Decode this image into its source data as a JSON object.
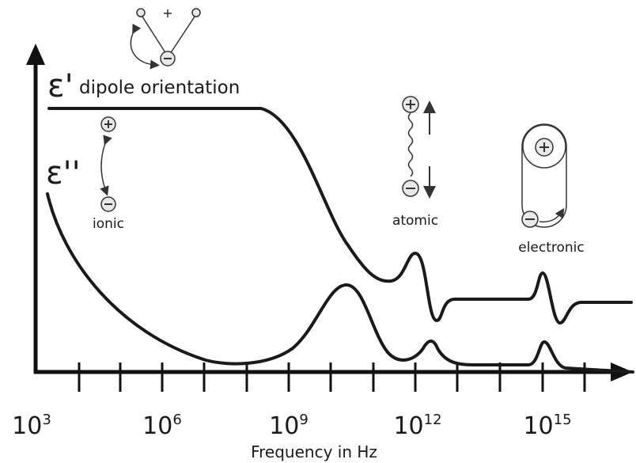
{
  "diagram": {
    "epsilon_real": {
      "symbol": "ε'",
      "label": "dipole orientation"
    },
    "epsilon_imag": {
      "symbol": "ε''"
    },
    "mechanisms": {
      "ionic": "ionic",
      "atomic": "atomic",
      "electronic": "electronic"
    },
    "dipole_icon_sign": "+",
    "x_axis": {
      "title": "Frequency in Hz",
      "tick_labels": [
        {
          "base": "10",
          "exponent": "3"
        },
        {
          "base": "10",
          "exponent": "6"
        },
        {
          "base": "10",
          "exponent": "9"
        },
        {
          "base": "10",
          "exponent": "12"
        },
        {
          "base": "10",
          "exponent": "15"
        }
      ]
    }
  }
}
